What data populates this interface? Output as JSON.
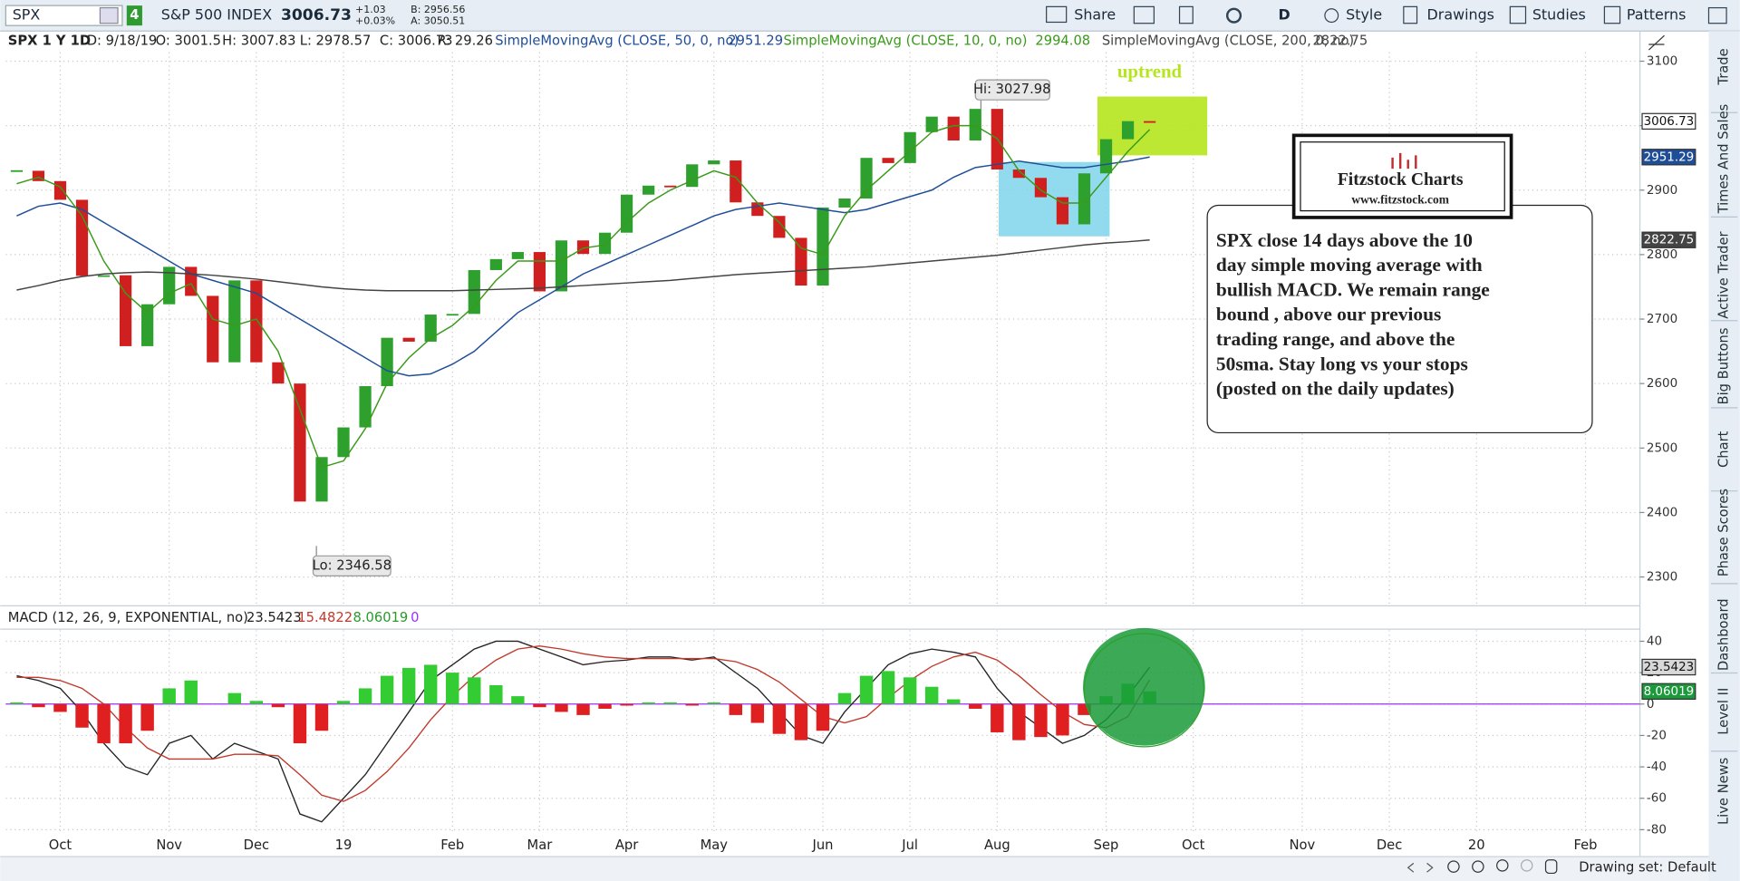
{
  "toolbar": {
    "symbol": "SPX",
    "link": "4",
    "description": "S&P 500 INDEX",
    "last": "3006.73",
    "change": "+1.03",
    "change_pct": "+0.03%",
    "bid": "B: 2956.56",
    "ask": "A: 3050.51",
    "buttons": [
      "Share",
      "D",
      "Style",
      "Drawings",
      "Studies",
      "Patterns"
    ]
  },
  "header": {
    "symbol_period": "SPX 1 Y 1D",
    "date": "D: 9/18/19",
    "open": "O: 3001.5",
    "high": "H: 3007.83",
    "low": "L: 2978.57",
    "close": "C: 3006.73",
    "range": "R: 29.26"
  },
  "sidebar_tabs": [
    "Trade",
    "Times And Sales",
    "Active Trader",
    "Big Buttons",
    "Chart",
    "Phase Scores",
    "Dashboard",
    "Level II",
    "Live News"
  ],
  "footer": {
    "drawing_set": "Drawing set: Default"
  },
  "chart_data": [
    {
      "type": "candlestick",
      "up_color": "#2ea02e",
      "down_color": "#d01f1f",
      "grid": true,
      "categories": [
        null,
        null,
        "Oct",
        null,
        null,
        null,
        null,
        "Nov",
        null,
        null,
        null,
        "Dec",
        null,
        null,
        null,
        "19",
        null,
        null,
        null,
        null,
        "Feb",
        null,
        null,
        null,
        "Mar",
        null,
        null,
        null,
        "Apr",
        null,
        null,
        null,
        "May",
        null,
        null,
        null,
        null,
        "Jun",
        null,
        null,
        null,
        "Jul",
        null,
        null,
        null,
        "Aug",
        null,
        null,
        null,
        null,
        "Sep",
        null,
        null,
        null,
        "Oct",
        null,
        null,
        null,
        null,
        "Nov",
        null,
        null,
        null,
        "Dec",
        null,
        null,
        null,
        "20",
        null,
        null,
        null,
        null,
        "Feb",
        null,
        null
      ],
      "series": [
        {
          "name": "SPX",
          "values": [
            2930,
            2914,
            2885,
            2767,
            2768,
            2658,
            2723,
            2781,
            2736,
            2633,
            2760,
            2633,
            2600,
            2417,
            2486,
            2532,
            2596,
            2671,
            2665,
            2707,
            2708,
            2776,
            2793,
            2804,
            2743,
            2822,
            2801,
            2834,
            2893,
            2907,
            2905,
            2940,
            2946,
            2881,
            2860,
            2826,
            2752,
            2873,
            2887,
            2950,
            2942,
            2990,
            3014,
            2977,
            3026,
            2932,
            2919,
            2889,
            2847,
            2926,
            2979,
            3007,
            3006.73,
            null,
            null,
            null,
            null,
            null,
            null,
            null,
            null,
            null,
            null,
            null,
            null,
            null,
            null,
            null,
            null,
            null,
            null,
            null,
            null,
            null,
            null
          ]
        },
        {
          "name": "SimpleMovingAvg (CLOSE, 50, 0, no)",
          "type": "line",
          "color": "#1f4e99",
          "values": [
            2860,
            2875,
            2880,
            2870,
            2850,
            2830,
            2810,
            2790,
            2770,
            2760,
            2750,
            2740,
            2720,
            2700,
            2680,
            2660,
            2640,
            2620,
            2612,
            2615,
            2630,
            2650,
            2680,
            2710,
            2730,
            2750,
            2770,
            2785,
            2800,
            2815,
            2830,
            2845,
            2860,
            2870,
            2875,
            2880,
            2875,
            2870,
            2865,
            2870,
            2880,
            2890,
            2900,
            2920,
            2935,
            2940,
            2945,
            2940,
            2935,
            2935,
            2940,
            2945,
            2951.29,
            null,
            null,
            null,
            null,
            null,
            null,
            null,
            null,
            null,
            null,
            null,
            null,
            null,
            null,
            null,
            null,
            null,
            null,
            null,
            null,
            null,
            null
          ]
        },
        {
          "name": "SimpleMovingAvg (CLOSE, 10, 0, no)",
          "type": "line",
          "color": "#3a9a1a",
          "values": [
            2910,
            2920,
            2905,
            2860,
            2790,
            2740,
            2710,
            2740,
            2755,
            2700,
            2690,
            2700,
            2650,
            2560,
            2470,
            2480,
            2530,
            2600,
            2640,
            2670,
            2690,
            2720,
            2760,
            2790,
            2790,
            2790,
            2810,
            2815,
            2850,
            2880,
            2900,
            2915,
            2930,
            2920,
            2880,
            2850,
            2810,
            2800,
            2860,
            2900,
            2930,
            2960,
            2990,
            3000,
            3000,
            2980,
            2930,
            2900,
            2880,
            2880,
            2920,
            2960,
            2994.08,
            null,
            null,
            null,
            null,
            null,
            null,
            null,
            null,
            null,
            null,
            null,
            null,
            null,
            null,
            null,
            null,
            null,
            null,
            null,
            null,
            null,
            null
          ]
        },
        {
          "name": "SimpleMovingAvg (CLOSE, 200, 0, no)",
          "type": "line",
          "color": "#444444",
          "values": [
            2745,
            2752,
            2760,
            2766,
            2770,
            2772,
            2773,
            2772,
            2770,
            2768,
            2765,
            2762,
            2758,
            2754,
            2750,
            2747,
            2745,
            2744,
            2744,
            2744,
            2744,
            2745,
            2746,
            2747,
            2748,
            2750,
            2752,
            2754,
            2756,
            2758,
            2760,
            2763,
            2766,
            2769,
            2771,
            2773,
            2775,
            2777,
            2779,
            2781,
            2784,
            2787,
            2790,
            2793,
            2796,
            2799,
            2803,
            2807,
            2811,
            2815,
            2818,
            2820,
            2822.75,
            null,
            null,
            null,
            null,
            null,
            null,
            null,
            null,
            null,
            null,
            null,
            null,
            null,
            null,
            null,
            null,
            null,
            null,
            null,
            null,
            null,
            null
          ]
        }
      ],
      "ylim": [
        2257,
        3114
      ],
      "yticks": [
        2300,
        2400,
        2500,
        2600,
        2700,
        2800,
        2900,
        3000,
        3100
      ],
      "annotations": {
        "high": "Hi: 3027.98",
        "low": "Lo: 2346.58",
        "uptrend": "uptrend",
        "logo_title": "Fitzstock Charts",
        "logo_url": "www.fitzstock.com",
        "note": [
          "SPX close 14 days above the 10",
          "day simple moving average with",
          "bullish MACD.  We remain range",
          "bound , above our previous",
          "trading range, and above the",
          "50sma.  Stay long vs your stops",
          "(posted on the daily updates)"
        ]
      }
    },
    {
      "type": "macd",
      "title": "MACD (12, 26, 9, EXPONENTIAL, no)",
      "zero_line": 0,
      "zero_line_color": "#9b30ff",
      "grid": true,
      "series": [
        {
          "type": "line",
          "color": "#222222",
          "values": [
            18,
            15,
            10,
            -5,
            -25,
            -40,
            -45,
            -25,
            -20,
            -35,
            -25,
            -30,
            -35,
            -70,
            -75,
            -60,
            -45,
            -25,
            -5,
            15,
            25,
            35,
            40,
            40,
            35,
            30,
            25,
            27,
            28,
            30,
            30,
            28,
            30,
            20,
            10,
            -5,
            -20,
            -25,
            -5,
            10,
            25,
            32,
            35,
            33,
            30,
            10,
            -5,
            -15,
            -25,
            -20,
            -10,
            5,
            23.5423,
            null,
            null,
            null,
            null,
            null,
            null,
            null,
            null,
            null,
            null,
            null,
            null,
            null,
            null,
            null,
            null,
            null,
            null,
            null,
            null,
            null,
            null
          ]
        },
        {
          "type": "line",
          "color": "#c0392b",
          "values": [
            17,
            17,
            15,
            10,
            0,
            -15,
            -28,
            -35,
            -35,
            -35,
            -32,
            -32,
            -33,
            -45,
            -58,
            -62,
            -55,
            -43,
            -28,
            -10,
            5,
            18,
            28,
            35,
            37,
            35,
            32,
            30,
            29,
            29,
            29,
            29,
            29,
            27,
            22,
            14,
            3,
            -8,
            -12,
            -8,
            4,
            15,
            24,
            30,
            33,
            28,
            18,
            6,
            -5,
            -13,
            -15,
            -8,
            15.4822,
            null,
            null,
            null,
            null,
            null,
            null,
            null,
            null,
            null,
            null,
            null,
            null,
            null,
            null,
            null,
            null,
            null,
            null,
            null,
            null,
            null,
            null
          ]
        },
        {
          "type": "histogram",
          "up_color": "#33cc33",
          "down_color": "#e02020",
          "values": [
            1,
            -2,
            -5,
            -15,
            -25,
            -25,
            -17,
            10,
            15,
            0,
            7,
            2,
            -2,
            -25,
            -17,
            2,
            10,
            18,
            23,
            25,
            20,
            17,
            12,
            5,
            -2,
            -5,
            -7,
            -3,
            -1,
            1,
            1,
            -1,
            1,
            -7,
            -12,
            -19,
            -23,
            -17,
            7,
            18,
            21,
            17,
            11,
            3,
            -3,
            -18,
            -23,
            -21,
            -20,
            -7,
            5,
            13,
            8.06019,
            null,
            null,
            null,
            null,
            null,
            null,
            null,
            null,
            null,
            null,
            null,
            null,
            null,
            null,
            null,
            null,
            null,
            null,
            null,
            null,
            null,
            null
          ]
        }
      ],
      "ylim": [
        -83,
        47
      ],
      "yticks": [
        40,
        20,
        0,
        -20,
        -40,
        -60,
        -80
      ]
    }
  ]
}
